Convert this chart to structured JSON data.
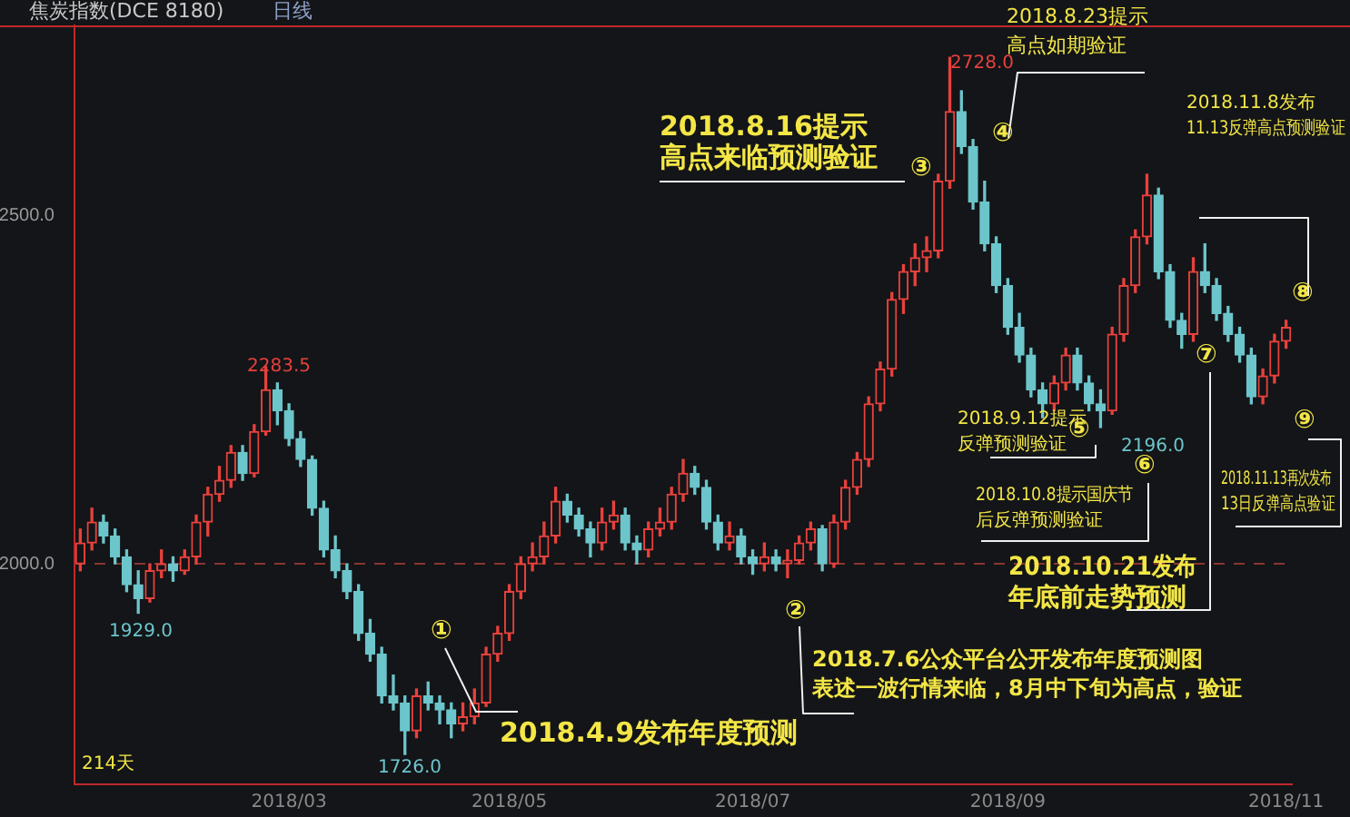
{
  "chart_data": {
    "type": "candlestick",
    "title": "焦炭指数(DCE 8180)",
    "subtitle": "日线",
    "categories": [
      null,
      null,
      null,
      null,
      null,
      null,
      null,
      null,
      null,
      null,
      null,
      null,
      null,
      null,
      null,
      null,
      null,
      null,
      "2018/03",
      null,
      null,
      null,
      null,
      null,
      null,
      null,
      null,
      null,
      null,
      null,
      null,
      null,
      null,
      null,
      null,
      null,
      null,
      "2018/05",
      null,
      null,
      null,
      null,
      null,
      null,
      null,
      null,
      null,
      null,
      null,
      null,
      null,
      null,
      null,
      null,
      null,
      null,
      null,
      null,
      "2018/07",
      null,
      null,
      null,
      null,
      null,
      null,
      null,
      null,
      null,
      null,
      null,
      null,
      null,
      null,
      null,
      null,
      null,
      null,
      null,
      null,
      null,
      "2018/09",
      null,
      null,
      null,
      null,
      null,
      null,
      null,
      null,
      null,
      null,
      null,
      null,
      null,
      null,
      null,
      null,
      null,
      null,
      null,
      null,
      null,
      null,
      null,
      "2018/11"
    ],
    "ohlc": [
      [
        2000,
        2050,
        1990,
        2030
      ],
      [
        2030,
        2080,
        2020,
        2060
      ],
      [
        2060,
        2070,
        2030,
        2040
      ],
      [
        2040,
        2050,
        2000,
        2010
      ],
      [
        2010,
        2020,
        1960,
        1970
      ],
      [
        1970,
        1990,
        1929,
        1950
      ],
      [
        1950,
        2000,
        1945,
        1990
      ],
      [
        1990,
        2020,
        1980,
        2000
      ],
      [
        2000,
        2010,
        1975,
        1990
      ],
      [
        1990,
        2020,
        1985,
        2010
      ],
      [
        2010,
        2070,
        2000,
        2060
      ],
      [
        2060,
        2110,
        2040,
        2100
      ],
      [
        2100,
        2140,
        2090,
        2120
      ],
      [
        2120,
        2170,
        2110,
        2160
      ],
      [
        2160,
        2170,
        2120,
        2130
      ],
      [
        2130,
        2200,
        2125,
        2190
      ],
      [
        2190,
        2283.5,
        2185,
        2250
      ],
      [
        2250,
        2260,
        2200,
        2220
      ],
      [
        2220,
        2230,
        2170,
        2180
      ],
      [
        2180,
        2190,
        2140,
        2150
      ],
      [
        2150,
        2155,
        2070,
        2080
      ],
      [
        2080,
        2090,
        2010,
        2020
      ],
      [
        2020,
        2040,
        1980,
        1990
      ],
      [
        1990,
        2000,
        1950,
        1960
      ],
      [
        1960,
        1970,
        1890,
        1900
      ],
      [
        1900,
        1920,
        1860,
        1870
      ],
      [
        1870,
        1880,
        1800,
        1810
      ],
      [
        1810,
        1840,
        1790,
        1800
      ],
      [
        1800,
        1810,
        1726,
        1760
      ],
      [
        1760,
        1820,
        1750,
        1810
      ],
      [
        1810,
        1830,
        1790,
        1800
      ],
      [
        1800,
        1810,
        1770,
        1790
      ],
      [
        1790,
        1800,
        1750,
        1770
      ],
      [
        1770,
        1800,
        1760,
        1780
      ],
      [
        1780,
        1820,
        1770,
        1800
      ],
      [
        1800,
        1880,
        1795,
        1870
      ],
      [
        1870,
        1910,
        1860,
        1900
      ],
      [
        1900,
        1970,
        1890,
        1960
      ],
      [
        1960,
        2010,
        1950,
        2000
      ],
      [
        2000,
        2030,
        1990,
        2010
      ],
      [
        2010,
        2060,
        2000,
        2040
      ],
      [
        2040,
        2110,
        2030,
        2090
      ],
      [
        2090,
        2100,
        2060,
        2070
      ],
      [
        2070,
        2080,
        2040,
        2050
      ],
      [
        2050,
        2060,
        2010,
        2030
      ],
      [
        2030,
        2080,
        2020,
        2060
      ],
      [
        2060,
        2090,
        2050,
        2070
      ],
      [
        2070,
        2080,
        2020,
        2030
      ],
      [
        2030,
        2040,
        2000,
        2020
      ],
      [
        2020,
        2060,
        2010,
        2050
      ],
      [
        2050,
        2080,
        2040,
        2060
      ],
      [
        2060,
        2110,
        2050,
        2100
      ],
      [
        2100,
        2150,
        2090,
        2130
      ],
      [
        2130,
        2140,
        2100,
        2110
      ],
      [
        2110,
        2120,
        2050,
        2060
      ],
      [
        2060,
        2070,
        2020,
        2030
      ],
      [
        2030,
        2060,
        2020,
        2040
      ],
      [
        2040,
        2050,
        2000,
        2010
      ],
      [
        2010,
        2020,
        1985,
        2000
      ],
      [
        2000,
        2030,
        1990,
        2010
      ],
      [
        2010,
        2020,
        1990,
        2000
      ],
      [
        2000,
        2020,
        1980,
        2005
      ],
      [
        2005,
        2040,
        2000,
        2030
      ],
      [
        2030,
        2060,
        2020,
        2050
      ],
      [
        2050,
        2055,
        1990,
        2000
      ],
      [
        2000,
        2070,
        1995,
        2060
      ],
      [
        2060,
        2120,
        2050,
        2110
      ],
      [
        2110,
        2160,
        2100,
        2150
      ],
      [
        2150,
        2240,
        2140,
        2230
      ],
      [
        2230,
        2290,
        2220,
        2280
      ],
      [
        2280,
        2390,
        2270,
        2380
      ],
      [
        2380,
        2430,
        2360,
        2420
      ],
      [
        2420,
        2460,
        2400,
        2440
      ],
      [
        2440,
        2470,
        2420,
        2450
      ],
      [
        2450,
        2560,
        2440,
        2550
      ],
      [
        2550,
        2728,
        2540,
        2650
      ],
      [
        2650,
        2680,
        2590,
        2600
      ],
      [
        2600,
        2610,
        2510,
        2520
      ],
      [
        2520,
        2550,
        2450,
        2460
      ],
      [
        2460,
        2470,
        2390,
        2400
      ],
      [
        2400,
        2410,
        2330,
        2340
      ],
      [
        2340,
        2360,
        2290,
        2300
      ],
      [
        2300,
        2310,
        2240,
        2250
      ],
      [
        2250,
        2260,
        2210,
        2230
      ],
      [
        2230,
        2270,
        2220,
        2260
      ],
      [
        2260,
        2310,
        2250,
        2300
      ],
      [
        2300,
        2310,
        2250,
        2260
      ],
      [
        2260,
        2270,
        2220,
        2230
      ],
      [
        2230,
        2250,
        2196,
        2220
      ],
      [
        2220,
        2340,
        2215,
        2330
      ],
      [
        2330,
        2410,
        2320,
        2400
      ],
      [
        2400,
        2480,
        2390,
        2470
      ],
      [
        2470,
        2560,
        2460,
        2530
      ],
      [
        2530,
        2540,
        2410,
        2420
      ],
      [
        2420,
        2430,
        2340,
        2350
      ],
      [
        2350,
        2360,
        2310,
        2330
      ],
      [
        2330,
        2440,
        2320,
        2420
      ],
      [
        2420,
        2460,
        2390,
        2400
      ],
      [
        2400,
        2410,
        2350,
        2360
      ],
      [
        2360,
        2370,
        2320,
        2330
      ],
      [
        2330,
        2340,
        2290,
        2300
      ],
      [
        2300,
        2310,
        2230,
        2240
      ],
      [
        2240,
        2280,
        2230,
        2270
      ],
      [
        2270,
        2330,
        2260,
        2320
      ],
      [
        2320,
        2350,
        2310,
        2340
      ]
    ],
    "colors": [
      "#e8413c",
      "#e8413c",
      "#6cc5cb",
      "#6cc5cb",
      "#6cc5cb",
      "#6cc5cb",
      "#e8413c",
      "#e8413c",
      "#6cc5cb",
      "#e8413c",
      "#e8413c",
      "#e8413c",
      "#e8413c",
      "#e8413c",
      "#6cc5cb",
      "#e8413c",
      "#e8413c",
      "#6cc5cb",
      "#6cc5cb",
      "#6cc5cb",
      "#6cc5cb",
      "#6cc5cb",
      "#6cc5cb",
      "#6cc5cb",
      "#6cc5cb",
      "#6cc5cb",
      "#6cc5cb",
      "#6cc5cb",
      "#6cc5cb",
      "#e8413c",
      "#6cc5cb",
      "#6cc5cb",
      "#6cc5cb",
      "#e8413c",
      "#e8413c",
      "#e8413c",
      "#e8413c",
      "#e8413c",
      "#e8413c",
      "#e8413c",
      "#e8413c",
      "#e8413c",
      "#6cc5cb",
      "#6cc5cb",
      "#6cc5cb",
      "#e8413c",
      "#e8413c",
      "#6cc5cb",
      "#6cc5cb",
      "#e8413c",
      "#e8413c",
      "#e8413c",
      "#e8413c",
      "#6cc5cb",
      "#6cc5cb",
      "#6cc5cb",
      "#e8413c",
      "#6cc5cb",
      "#6cc5cb",
      "#e8413c",
      "#6cc5cb",
      "#e8413c",
      "#e8413c",
      "#e8413c",
      "#6cc5cb",
      "#e8413c",
      "#e8413c",
      "#e8413c",
      "#e8413c",
      "#e8413c",
      "#e8413c",
      "#e8413c",
      "#e8413c",
      "#e8413c",
      "#e8413c",
      "#e8413c",
      "#6cc5cb",
      "#6cc5cb",
      "#6cc5cb",
      "#6cc5cb",
      "#6cc5cb",
      "#6cc5cb",
      "#6cc5cb",
      "#6cc5cb",
      "#e8413c",
      "#e8413c",
      "#6cc5cb",
      "#6cc5cb",
      "#6cc5cb",
      "#e8413c",
      "#e8413c",
      "#e8413c",
      "#e8413c",
      "#6cc5cb",
      "#6cc5cb",
      "#6cc5cb",
      "#e8413c",
      "#6cc5cb",
      "#6cc5cb",
      "#6cc5cb",
      "#6cc5cb",
      "#6cc5cb",
      "#e8413c",
      "#e8413c",
      "#e8413c"
    ],
    "ylim": [
      1683,
      2774
    ],
    "yticks": [
      {
        "value": 2000,
        "label": "2000.0"
      },
      {
        "value": 2500,
        "label": "2500.0"
      }
    ],
    "ref_lines": [
      {
        "axis": "y",
        "value": 2000,
        "color": "#8a3430",
        "line_style": "dashed"
      }
    ],
    "annotations": [
      "2728.0",
      "2283.5",
      "1929.0",
      "1726.0",
      "2196.0",
      "214天",
      "①",
      "2018.4.9发布年度预测",
      "②",
      "2018.7.6公众平台公开发布年度预测图",
      "表述一波行情来临，8月中下旬为高点，验证",
      "2018.8.16提示",
      "高点来临预测验证",
      "③",
      "2018.8.23提示",
      "高点如期验证",
      "④",
      "2018.9.12提示",
      "反弹预测验证",
      "⑤",
      "⑥",
      "2018.10.8提示国庆节",
      "后反弹预测验证",
      "2018.10.21发布",
      "年底前走势预测",
      "⑦",
      "2018.11.8发布",
      "11.13反弹高点预测验证",
      "⑧",
      "2018.11.13再次发布",
      "13日反弹高点验证",
      "⑨"
    ]
  }
}
